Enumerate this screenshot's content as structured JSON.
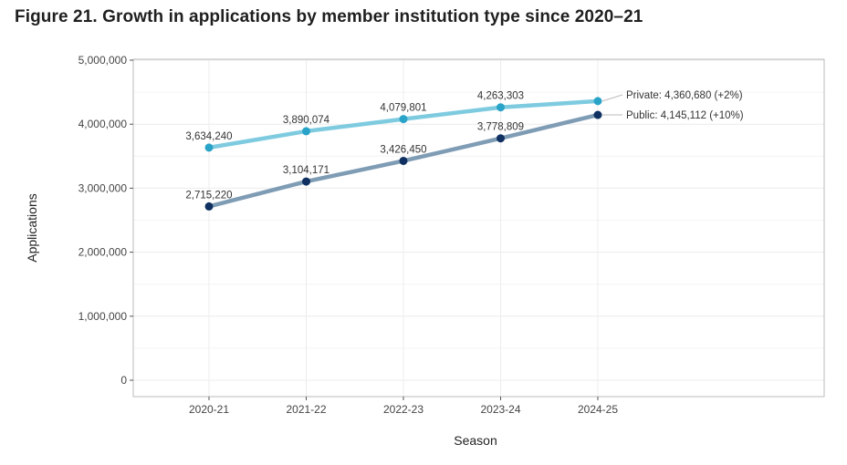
{
  "figure_title": "Figure 21. Growth in applications by member institution type since 2020–21",
  "colors": {
    "private_line": "#7ecbe0",
    "private_point": "#2aa3c8",
    "public_line": "#7f9cb5",
    "public_point": "#0f3060",
    "grid": "#ececec",
    "panel_border": "#bbbbbb"
  },
  "chart_data": {
    "type": "line",
    "title": "Figure 21. Growth in applications by member institution type since 2020–21",
    "xlabel": "Season",
    "ylabel": "Applications",
    "categories": [
      "2020-21",
      "2021-22",
      "2022-23",
      "2023-24",
      "2024-25"
    ],
    "ylim": [
      0,
      5000000
    ],
    "yticks": [
      0,
      1000000,
      2000000,
      3000000,
      4000000,
      5000000
    ],
    "ytick_labels": [
      "0",
      "1,000,000",
      "2,000,000",
      "3,000,000",
      "4,000,000",
      "5,000,000"
    ],
    "grid": true,
    "series": [
      {
        "name": "Private",
        "key": "private",
        "values": [
          3634240,
          3890074,
          4079801,
          4263303,
          4360680
        ],
        "data_labels": [
          "3,634,240",
          "3,890,074",
          "4,079,801",
          "4,263,303"
        ],
        "end_label": "Private: 4,360,680 (+2%)"
      },
      {
        "name": "Public",
        "key": "public",
        "values": [
          2715220,
          3104171,
          3426450,
          3778809,
          4145112
        ],
        "data_labels": [
          "2,715,220",
          "3,104,171",
          "3,426,450",
          "3,778,809"
        ],
        "end_label": "Public: 4,145,112 (+10%)"
      }
    ]
  }
}
